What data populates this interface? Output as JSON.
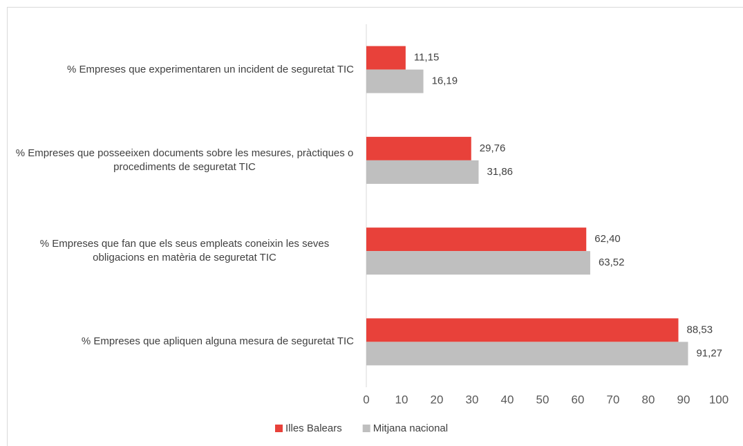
{
  "chart_data": {
    "type": "hbar",
    "categories": [
      "% Empreses que experimentaren un incident de seguretat TIC",
      "% Empreses que posseeixen documents sobre les mesures, pràctiques o procediments de seguretat TIC",
      "% Empreses que fan que els seus empleats coneixin les seves obligacions en matèria de seguretat TIC",
      "% Empreses que apliquen alguna mesura de seguretat TIC"
    ],
    "series": [
      {
        "name": "Illes Balears",
        "color": "#e8413a",
        "values": [
          11.15,
          29.76,
          62.4,
          88.53
        ],
        "value_labels": [
          "11,15",
          "29,76",
          "62,40",
          "88,53"
        ]
      },
      {
        "name": "Mitjana nacional",
        "color": "#bfbfbf",
        "values": [
          16.19,
          31.86,
          63.52,
          91.27
        ],
        "value_labels": [
          "16,19",
          "31,86",
          "63,52",
          "91,27"
        ]
      }
    ],
    "xlim": [
      0,
      100
    ],
    "xticks": [
      0,
      10,
      20,
      30,
      40,
      50,
      60,
      70,
      80,
      90,
      100
    ],
    "legend": "bottom"
  }
}
